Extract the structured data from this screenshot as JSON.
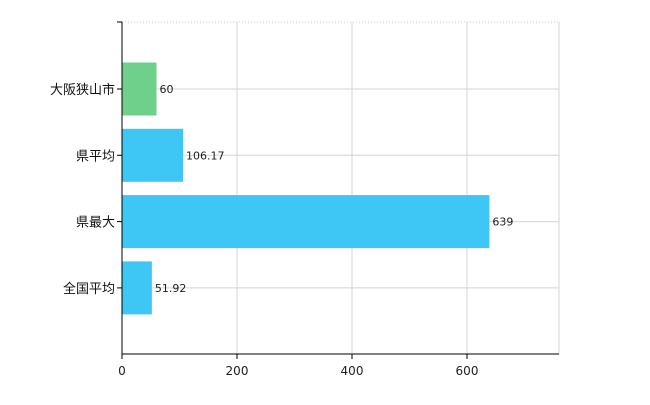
{
  "chart_data": {
    "type": "bar",
    "orientation": "horizontal",
    "categories": [
      "大阪狭山市",
      "県平均",
      "県最大",
      "全国平均"
    ],
    "values": [
      60,
      106.17,
      639,
      51.92
    ],
    "value_labels": [
      "60",
      "106.17",
      "639",
      "51.92"
    ],
    "bar_colors": [
      "#6fd08c",
      "#3ec6f5",
      "#3ec6f5",
      "#3ec6f5"
    ],
    "xlim": [
      0,
      760
    ],
    "xticks": [
      0,
      200,
      400,
      600
    ],
    "xtick_labels": [
      "0",
      "200",
      "400",
      "600"
    ],
    "grid": true,
    "title": "",
    "xlabel": "",
    "ylabel": ""
  }
}
